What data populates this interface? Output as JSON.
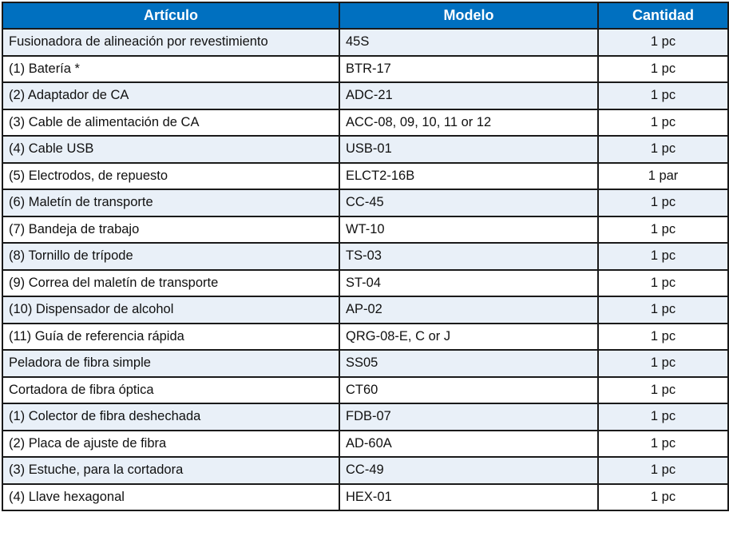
{
  "header_color": "#0070C0",
  "columns": [
    "Artículo",
    "Modelo",
    "Cantidad"
  ],
  "rows": [
    {
      "item": "Fusionadora de alineación por revestimiento",
      "model": "45S",
      "qty": "1 pc"
    },
    {
      "item": "(1) Batería *",
      "model": "BTR-17",
      "qty": "1 pc"
    },
    {
      "item": "(2) Adaptador de CA",
      "model": "ADC-21",
      "qty": "1 pc"
    },
    {
      "item": "(3) Cable de alimentación de CA",
      "model": "ACC-08, 09, 10, 11 or 12",
      "qty": "1 pc"
    },
    {
      "item": "(4) Cable USB",
      "model": "USB-01",
      "qty": "1 pc"
    },
    {
      "item": "(5) Electrodos, de repuesto",
      "model": "ELCT2-16B",
      "qty": "1 par"
    },
    {
      "item": "(6) Maletín de transporte",
      "model": "CC-45",
      "qty": "1 pc"
    },
    {
      "item": "(7) Bandeja de trabajo",
      "model": "WT-10",
      "qty": "1 pc"
    },
    {
      "item": "(8) Tornillo de trípode",
      "model": "TS-03",
      "qty": "1 pc"
    },
    {
      "item": "(9) Correa del maletín de transporte",
      "model": "ST-04",
      "qty": "1 pc"
    },
    {
      "item": "(10) Dispensador de alcohol",
      "model": "AP-02",
      "qty": "1 pc"
    },
    {
      "item": "(11) Guía de referencia rápida",
      "model": "QRG-08-E, C or J",
      "qty": "1 pc"
    },
    {
      "item": "Peladora de fibra simple",
      "model": "SS05",
      "qty": "1 pc"
    },
    {
      "item": "Cortadora de fibra óptica",
      "model": "CT60",
      "qty": "1 pc"
    },
    {
      "item": "(1) Colector de fibra deshechada",
      "model": "FDB-07",
      "qty": "1 pc"
    },
    {
      "item": "(2) Placa de ajuste de fibra",
      "model": "AD-60A",
      "qty": "1 pc"
    },
    {
      "item": "(3) Estuche, para la cortadora",
      "model": "CC-49",
      "qty": "1 pc"
    },
    {
      "item": "(4) Llave hexagonal",
      "model": "HEX-01",
      "qty": "1 pc"
    }
  ]
}
